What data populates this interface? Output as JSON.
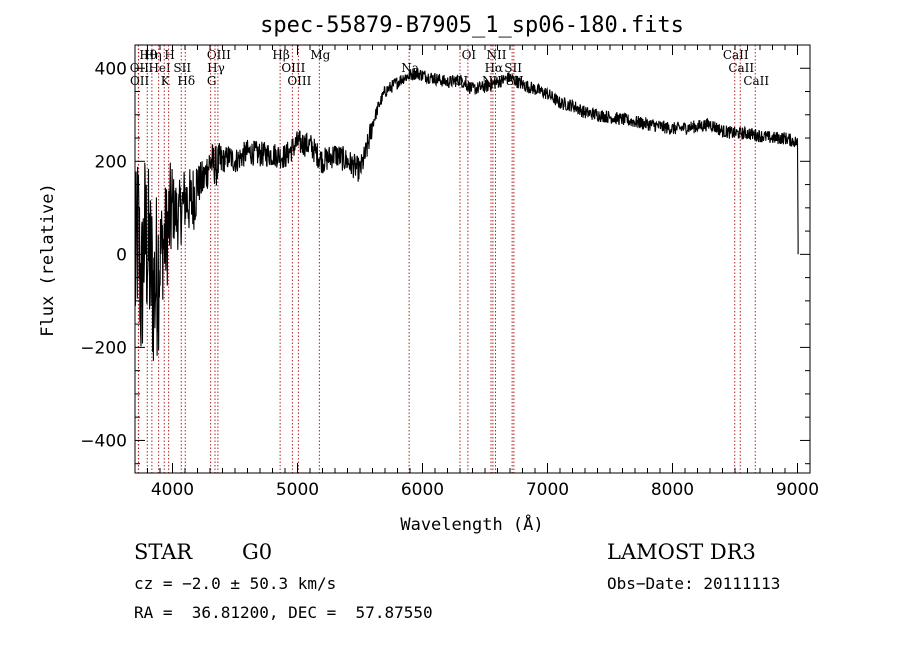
{
  "chart_data": {
    "type": "line",
    "title": "spec-55879-B7905_1_sp06-180.fits",
    "xlabel": "Wavelength (Å)",
    "ylabel": "Flux (relative)",
    "xlim": [
      3700,
      9100
    ],
    "ylim": [
      -470,
      450
    ],
    "xticks": [
      4000,
      5000,
      6000,
      7000,
      8000,
      9000
    ],
    "xtick_labels": [
      "4000",
      "5000",
      "6000",
      "7000",
      "8000",
      "9000"
    ],
    "yticks": [
      -400,
      -200,
      0,
      200,
      400
    ],
    "ytick_labels": [
      "−400",
      "−200",
      "0",
      "200",
      "400"
    ],
    "series": [
      {
        "name": "spectrum",
        "x": [
          3700,
          3725,
          3750,
          3775,
          3800,
          3850,
          3900,
          3950,
          4000,
          4050,
          4100,
          4150,
          4200,
          4250,
          4300,
          4350,
          4400,
          4450,
          4500,
          4600,
          4700,
          4800,
          4900,
          5000,
          5100,
          5200,
          5300,
          5400,
          5500,
          5550,
          5600,
          5650,
          5700,
          5750,
          5800,
          5850,
          5900,
          5950,
          6000,
          6100,
          6200,
          6300,
          6400,
          6500,
          6600,
          6700,
          6800,
          6900,
          7000,
          7100,
          7200,
          7300,
          7400,
          7500,
          7600,
          7700,
          7800,
          7900,
          8000,
          8100,
          8200,
          8300,
          8400,
          8500,
          8600,
          8700,
          8800,
          8900,
          9000,
          9010
        ],
        "y": [
          -50,
          60,
          -100,
          40,
          20,
          -80,
          0,
          40,
          100,
          80,
          120,
          110,
          150,
          160,
          200,
          190,
          200,
          210,
          200,
          220,
          215,
          215,
          210,
          240,
          235,
          200,
          215,
          200,
          180,
          220,
          280,
          320,
          350,
          360,
          370,
          380,
          385,
          390,
          385,
          378,
          370,
          375,
          355,
          360,
          370,
          380,
          365,
          355,
          345,
          325,
          320,
          305,
          300,
          295,
          290,
          285,
          280,
          275,
          270,
          272,
          275,
          280,
          265,
          260,
          260,
          255,
          250,
          250,
          240,
          30
        ]
      }
    ],
    "noise_amplitude_note": "high-frequency scatter increases strongly below 4300 Å",
    "spectral_lines": [
      {
        "label": "Hθ",
        "wavelength": 3798
      },
      {
        "label": "OII",
        "wavelength": 3727
      },
      {
        "label": "OII",
        "wavelength": 3729
      },
      {
        "label": "Hη",
        "wavelength": 3835
      },
      {
        "label": "HeI",
        "wavelength": 3889
      },
      {
        "label": "K",
        "wavelength": 3934
      },
      {
        "label": "H",
        "wavelength": 3969
      },
      {
        "label": "SII",
        "wavelength": 4070
      },
      {
        "label": "Hδ",
        "wavelength": 4102
      },
      {
        "label": "OIII",
        "wavelength": 4363
      },
      {
        "label": "Hγ",
        "wavelength": 4340
      },
      {
        "label": "G",
        "wavelength": 4305
      },
      {
        "label": "Hβ",
        "wavelength": 4861
      },
      {
        "label": "OIII",
        "wavelength": 4959
      },
      {
        "label": "OIII",
        "wavelength": 5007
      },
      {
        "label": "Mg",
        "wavelength": 5175
      },
      {
        "label": "Na",
        "wavelength": 5893
      },
      {
        "label": "OI",
        "wavelength": 6300
      },
      {
        "label": "OI",
        "wavelength": 6363
      },
      {
        "label": "Hα",
        "wavelength": 6563
      },
      {
        "label": "NII",
        "wavelength": 6548
      },
      {
        "label": "NII",
        "wavelength": 6584
      },
      {
        "label": "SII",
        "wavelength": 6717
      },
      {
        "label": "SII",
        "wavelength": 6731
      },
      {
        "label": "CaII",
        "wavelength": 8498
      },
      {
        "label": "CaII",
        "wavelength": 8542
      },
      {
        "label": "CaII",
        "wavelength": 8662
      }
    ],
    "line_color": "#b22222",
    "trace_color": "#000000"
  },
  "info": {
    "object_class": "STAR",
    "subclass": "G0",
    "survey": "LAMOST DR3",
    "cz": "cz = −2.0 ± 50.3 km/s",
    "obs_date": "Obs−Date: 20111113",
    "coords": "RA =  36.81200, DEC =  57.87550"
  }
}
